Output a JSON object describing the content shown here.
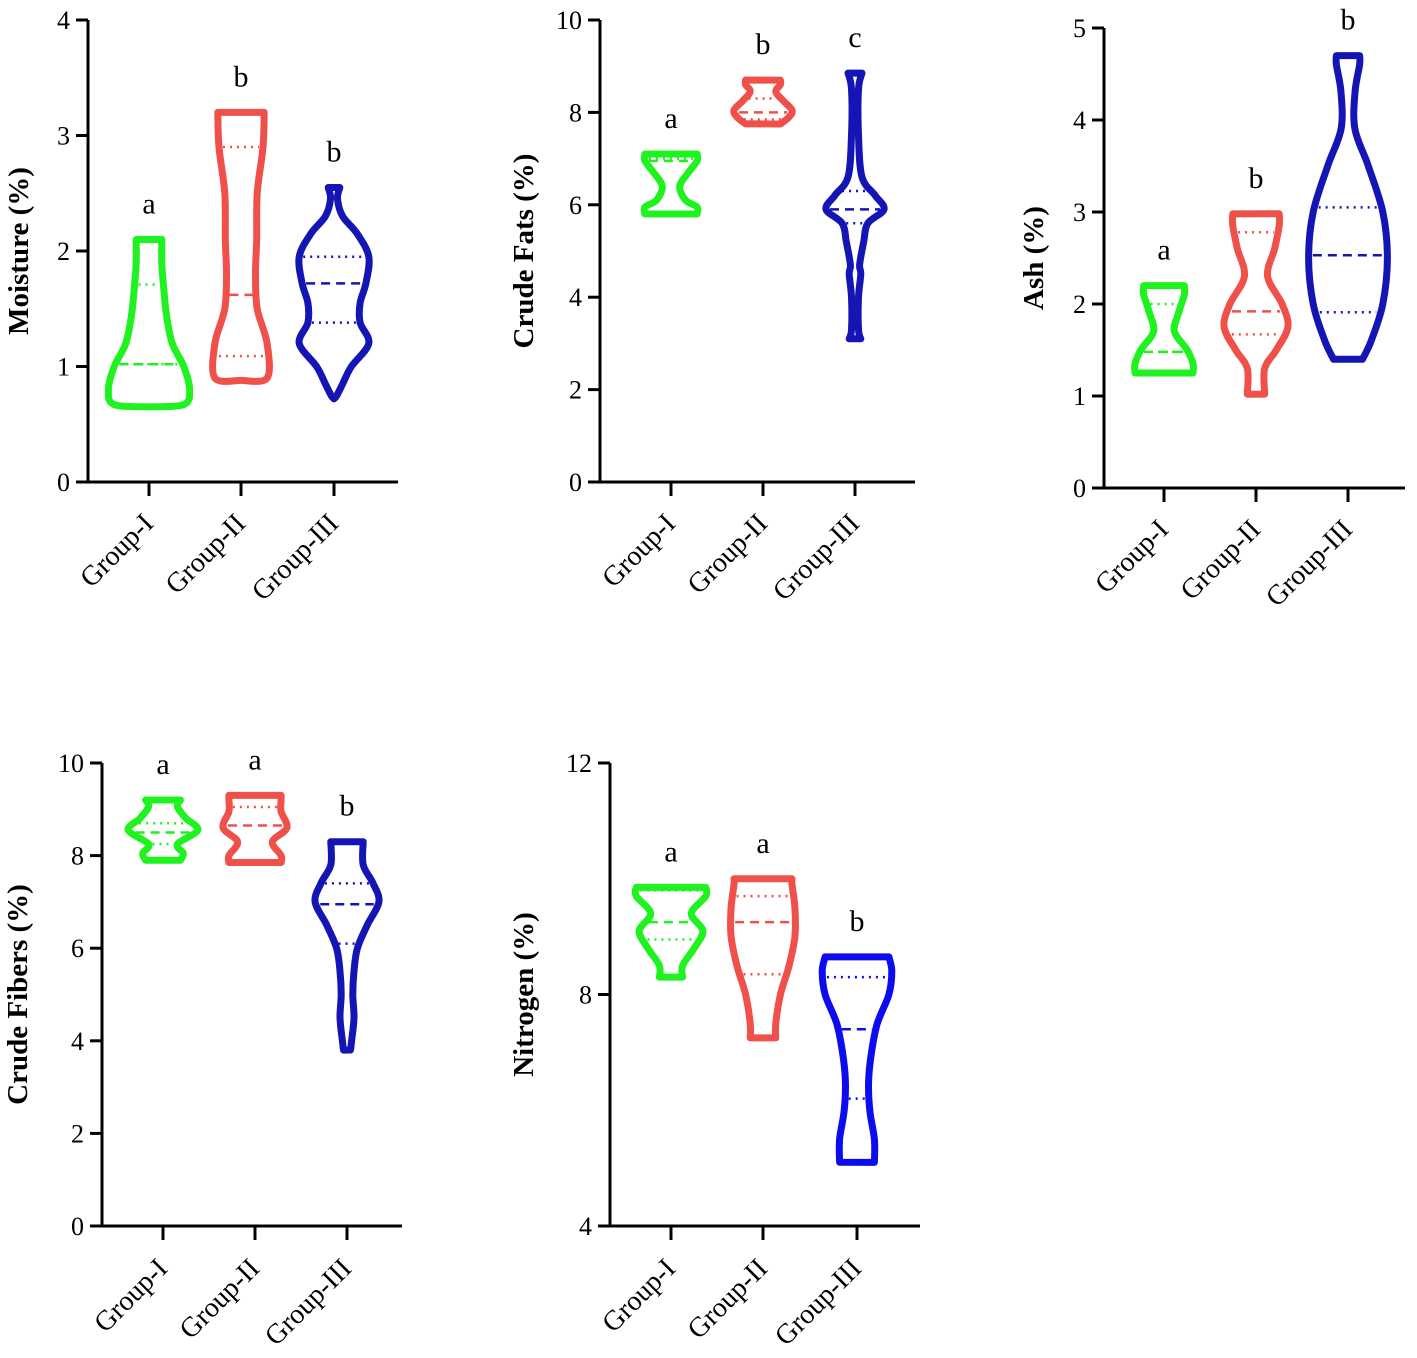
{
  "figure": {
    "background": "#ffffff"
  },
  "chart_data": [
    {
      "type": "violin",
      "ylabel": "Moisture (%)",
      "ylim": [
        0,
        4
      ],
      "yticks": [
        0,
        1,
        2,
        3,
        4
      ],
      "yticklabels": [
        "0",
        "1",
        "2",
        "3",
        "4"
      ],
      "categories": [
        "Group-I",
        "Group-II",
        "Group-III"
      ],
      "series": [
        {
          "name": "Group-I",
          "color": "#1ff21f",
          "min": 0.65,
          "max": 2.1,
          "q1": 1.02,
          "median": 1.02,
          "q3": 1.71,
          "sig": "a",
          "shape": [
            [
              0.65,
              0.0
            ],
            [
              0.67,
              0.6
            ],
            [
              0.8,
              0.7
            ],
            [
              1.0,
              0.6
            ],
            [
              1.2,
              0.4
            ],
            [
              1.45,
              0.3
            ],
            [
              1.7,
              0.25
            ],
            [
              1.9,
              0.22
            ],
            [
              2.1,
              0.22
            ]
          ]
        },
        {
          "name": "Group-II",
          "color": "#f0504a",
          "min": 0.88,
          "max": 3.2,
          "q1": 1.09,
          "median": 1.62,
          "q3": 2.9,
          "sig": "b",
          "shape": [
            [
              0.88,
              0.0
            ],
            [
              0.9,
              0.45
            ],
            [
              1.2,
              0.45
            ],
            [
              1.5,
              0.28
            ],
            [
              1.8,
              0.25
            ],
            [
              2.1,
              0.27
            ],
            [
              2.5,
              0.28
            ],
            [
              2.9,
              0.38
            ],
            [
              3.2,
              0.4
            ]
          ]
        },
        {
          "name": "Group-III",
          "color": "#1515b5",
          "min": 0.72,
          "max": 2.55,
          "q1": 1.38,
          "median": 1.72,
          "q3": 1.95,
          "sig": "b",
          "shape": [
            [
              0.72,
              0.0
            ],
            [
              0.75,
              0.05
            ],
            [
              0.85,
              0.15
            ],
            [
              1.0,
              0.3
            ],
            [
              1.2,
              0.6
            ],
            [
              1.38,
              0.45
            ],
            [
              1.55,
              0.45
            ],
            [
              1.72,
              0.55
            ],
            [
              1.95,
              0.6
            ],
            [
              2.15,
              0.4
            ],
            [
              2.3,
              0.15
            ],
            [
              2.45,
              0.06
            ],
            [
              2.55,
              0.1
            ]
          ]
        }
      ]
    },
    {
      "type": "violin",
      "ylabel": "Crude Fats (%)",
      "ylim": [
        0,
        10
      ],
      "yticks": [
        0,
        2,
        4,
        6,
        8,
        10
      ],
      "yticklabels": [
        "0",
        "2",
        "4",
        "6",
        "8",
        "10"
      ],
      "categories": [
        "Group-I",
        "Group-II",
        "Group-III"
      ],
      "series": [
        {
          "name": "Group-I",
          "color": "#1ff21f",
          "min": 5.8,
          "max": 7.1,
          "q1": 5.85,
          "median": 6.95,
          "q3": 7.0,
          "sig": "a",
          "shape": [
            [
              5.8,
              0.45
            ],
            [
              5.95,
              0.45
            ],
            [
              6.1,
              0.25
            ],
            [
              6.4,
              0.15
            ],
            [
              6.7,
              0.3
            ],
            [
              6.95,
              0.45
            ],
            [
              7.1,
              0.45
            ]
          ]
        },
        {
          "name": "Group-II",
          "color": "#f0504a",
          "min": 7.75,
          "max": 8.7,
          "q1": 7.85,
          "median": 8.0,
          "q3": 8.3,
          "sig": "b",
          "shape": [
            [
              7.75,
              0.3
            ],
            [
              7.9,
              0.45
            ],
            [
              8.05,
              0.5
            ],
            [
              8.25,
              0.35
            ],
            [
              8.45,
              0.22
            ],
            [
              8.6,
              0.3
            ],
            [
              8.7,
              0.3
            ]
          ]
        },
        {
          "name": "Group-III",
          "color": "#1515b5",
          "min": 3.1,
          "max": 8.85,
          "q1": 5.6,
          "median": 5.9,
          "q3": 6.3,
          "sig": "c",
          "shape": [
            [
              3.1,
              0.1
            ],
            [
              3.3,
              0.06
            ],
            [
              4.0,
              0.06
            ],
            [
              4.5,
              0.1
            ],
            [
              4.7,
              0.08
            ],
            [
              5.2,
              0.15
            ],
            [
              5.6,
              0.22
            ],
            [
              5.9,
              0.5
            ],
            [
              6.2,
              0.35
            ],
            [
              6.6,
              0.12
            ],
            [
              7.5,
              0.06
            ],
            [
              8.5,
              0.06
            ],
            [
              8.85,
              0.12
            ]
          ]
        }
      ]
    },
    {
      "type": "violin",
      "ylabel": "Ash (%)",
      "ylim": [
        0,
        5
      ],
      "yticks": [
        0,
        1,
        2,
        3,
        4,
        5
      ],
      "yticklabels": [
        "0",
        "1",
        "2",
        "3",
        "4",
        "5"
      ],
      "categories": [
        "Group-I",
        "Group-II",
        "Group-III"
      ],
      "series": [
        {
          "name": "Group-I",
          "color": "#1ff21f",
          "min": 1.25,
          "max": 2.2,
          "q1": 1.48,
          "median": 1.48,
          "q3": 2.0,
          "sig": "a",
          "shape": [
            [
              1.25,
              0.5
            ],
            [
              1.35,
              0.5
            ],
            [
              1.5,
              0.4
            ],
            [
              1.7,
              0.18
            ],
            [
              1.9,
              0.25
            ],
            [
              2.1,
              0.35
            ],
            [
              2.2,
              0.35
            ]
          ]
        },
        {
          "name": "Group-II",
          "color": "#f0504a",
          "min": 1.02,
          "max": 2.98,
          "q1": 1.67,
          "median": 1.92,
          "q3": 2.78,
          "sig": "b",
          "shape": [
            [
              1.02,
              0.15
            ],
            [
              1.3,
              0.15
            ],
            [
              1.5,
              0.35
            ],
            [
              1.75,
              0.55
            ],
            [
              2.0,
              0.45
            ],
            [
              2.3,
              0.2
            ],
            [
              2.6,
              0.32
            ],
            [
              2.85,
              0.4
            ],
            [
              2.98,
              0.4
            ]
          ]
        },
        {
          "name": "Group-III",
          "color": "#1515b5",
          "min": 1.4,
          "max": 4.7,
          "q1": 1.91,
          "median": 2.53,
          "q3": 3.05,
          "sig": "b",
          "shape": [
            [
              1.4,
              0.25
            ],
            [
              1.6,
              0.4
            ],
            [
              2.0,
              0.6
            ],
            [
              2.5,
              0.68
            ],
            [
              3.0,
              0.6
            ],
            [
              3.5,
              0.35
            ],
            [
              3.9,
              0.12
            ],
            [
              4.3,
              0.12
            ],
            [
              4.6,
              0.2
            ],
            [
              4.7,
              0.2
            ]
          ]
        }
      ]
    },
    {
      "type": "violin",
      "ylabel": "Crude Fibers (%)",
      "ylim": [
        0,
        10
      ],
      "yticks": [
        0,
        2,
        4,
        6,
        8,
        10
      ],
      "yticklabels": [
        "0",
        "2",
        "4",
        "6",
        "8",
        "10"
      ],
      "categories": [
        "Group-I",
        "Group-II",
        "Group-III"
      ],
      "series": [
        {
          "name": "Group-I",
          "color": "#1ff21f",
          "min": 7.9,
          "max": 9.2,
          "q1": 8.25,
          "median": 8.5,
          "q3": 8.7,
          "sig": "a",
          "shape": [
            [
              7.9,
              0.3
            ],
            [
              8.05,
              0.35
            ],
            [
              8.25,
              0.25
            ],
            [
              8.55,
              0.6
            ],
            [
              8.8,
              0.4
            ],
            [
              9.05,
              0.25
            ],
            [
              9.2,
              0.3
            ]
          ]
        },
        {
          "name": "Group-II",
          "color": "#f0504a",
          "min": 7.85,
          "max": 9.3,
          "q1": 7.9,
          "median": 8.65,
          "q3": 9.05,
          "sig": "a",
          "shape": [
            [
              7.85,
              0.45
            ],
            [
              8.0,
              0.45
            ],
            [
              8.3,
              0.3
            ],
            [
              8.6,
              0.55
            ],
            [
              8.95,
              0.45
            ],
            [
              9.2,
              0.45
            ],
            [
              9.3,
              0.45
            ]
          ]
        },
        {
          "name": "Group-III",
          "color": "#1515b5",
          "min": 3.8,
          "max": 8.3,
          "q1": 6.1,
          "median": 6.95,
          "q3": 7.4,
          "sig": "b",
          "shape": [
            [
              3.8,
              0.06
            ],
            [
              4.0,
              0.08
            ],
            [
              4.5,
              0.12
            ],
            [
              5.0,
              0.1
            ],
            [
              5.5,
              0.12
            ],
            [
              6.0,
              0.18
            ],
            [
              6.5,
              0.35
            ],
            [
              7.0,
              0.55
            ],
            [
              7.4,
              0.45
            ],
            [
              7.8,
              0.28
            ],
            [
              8.3,
              0.28
            ]
          ]
        }
      ]
    },
    {
      "type": "violin",
      "ylabel": "Nitrogen (%)",
      "ylim": [
        4,
        12
      ],
      "yticks": [
        4,
        8,
        12
      ],
      "yticklabels": [
        "4",
        "8",
        "12"
      ],
      "categories": [
        "Group-I",
        "Group-II",
        "Group-III"
      ],
      "series": [
        {
          "name": "Group-I",
          "color": "#1ff21f",
          "min": 8.3,
          "max": 9.85,
          "q1": 8.95,
          "median": 9.25,
          "q3": 9.8,
          "sig": "a",
          "shape": [
            [
              8.3,
              0.2
            ],
            [
              8.5,
              0.2
            ],
            [
              8.8,
              0.4
            ],
            [
              9.1,
              0.55
            ],
            [
              9.4,
              0.35
            ],
            [
              9.7,
              0.6
            ],
            [
              9.85,
              0.6
            ]
          ]
        },
        {
          "name": "Group-II",
          "color": "#f0504a",
          "min": 7.25,
          "max": 10.0,
          "q1": 8.35,
          "median": 9.25,
          "q3": 9.7,
          "sig": "a",
          "shape": [
            [
              7.25,
              0.22
            ],
            [
              7.5,
              0.22
            ],
            [
              8.0,
              0.3
            ],
            [
              8.5,
              0.45
            ],
            [
              9.0,
              0.55
            ],
            [
              9.5,
              0.55
            ],
            [
              9.9,
              0.5
            ],
            [
              10.0,
              0.5
            ]
          ]
        },
        {
          "name": "Group-III",
          "color": "#0c0cee",
          "min": 5.1,
          "max": 8.65,
          "q1": 6.2,
          "median": 7.4,
          "q3": 8.3,
          "sig": "b",
          "shape": [
            [
              5.1,
              0.3
            ],
            [
              5.5,
              0.3
            ],
            [
              6.0,
              0.22
            ],
            [
              6.5,
              0.2
            ],
            [
              7.0,
              0.25
            ],
            [
              7.5,
              0.35
            ],
            [
              8.0,
              0.55
            ],
            [
              8.4,
              0.6
            ],
            [
              8.65,
              0.55
            ]
          ]
        }
      ]
    }
  ]
}
